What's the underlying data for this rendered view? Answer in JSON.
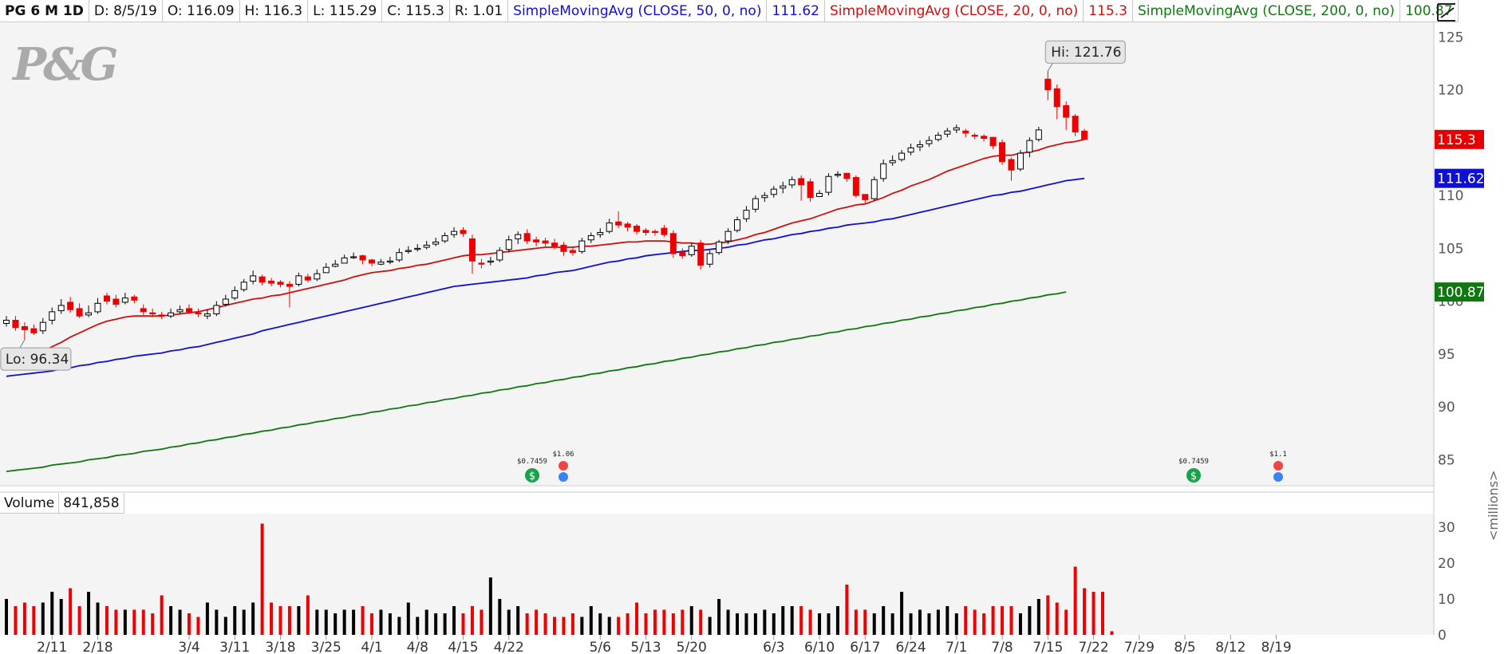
{
  "header": {
    "symbol": "PG 6 M 1D",
    "date": "D: 8/5/19",
    "open": "O: 116.09",
    "high": "H: 116.3",
    "low": "L: 115.29",
    "close": "C: 115.3",
    "range": "R: 1.01",
    "sma50_label": "SimpleMovingAvg (CLOSE, 50, 0, no)",
    "sma50_value": "111.62",
    "sma20_label": "SimpleMovingAvg (CLOSE, 20, 0, no)",
    "sma20_value": "115.3",
    "sma200_label": "SimpleMovingAvg (CLOSE, 200, 0, no)",
    "sma200_value": "100.87"
  },
  "logo": "P&G",
  "volume_header": {
    "label": "Volume",
    "value": "841,858"
  },
  "volume_unit": "<millions>",
  "colors": {
    "up": "#000000",
    "down": "#ee0000",
    "sma50": "#1010d0",
    "sma20": "#cc1111",
    "sma200": "#117711"
  },
  "icons": [
    "drawing-tool-icon",
    "dividend-icon",
    "earnings-icon"
  ],
  "chart_data": {
    "type": "candlestick",
    "price_axis": {
      "ticks": [
        "125",
        "120",
        "115",
        "110",
        "105",
        "100",
        "95",
        "90",
        "85"
      ],
      "ylim": [
        83,
        126
      ]
    },
    "volume_axis": {
      "ticks": [
        "30",
        "20",
        "10",
        "0"
      ],
      "ylim": [
        0,
        32
      ],
      "unit": "<millions>"
    },
    "x_ticks": [
      "2/11",
      "2/18",
      "3/4",
      "3/11",
      "3/18",
      "3/25",
      "4/1",
      "4/8",
      "4/15",
      "4/22",
      "5/6",
      "5/13",
      "5/20",
      "6/3",
      "6/10",
      "6/17",
      "6/24",
      "7/1",
      "7/8",
      "7/15",
      "7/22",
      "7/29",
      "8/5",
      "8/12",
      "8/19"
    ],
    "price_tags": [
      {
        "value": "115.3",
        "color": "#e60000",
        "y": 115.3
      },
      {
        "value": "111.62",
        "color": "#1010d0",
        "y": 111.62
      },
      {
        "value": "100.87",
        "color": "#117711",
        "y": 100.87
      }
    ],
    "callouts": {
      "high": "Hi: 121.76",
      "low": "Lo: 96.34"
    },
    "dividends": [
      {
        "label": "$0.7459",
        "date": "4/18"
      },
      {
        "label": "$0.7459",
        "date": "7/18"
      }
    ],
    "earnings": [
      {
        "label": "$1.06",
        "date": "4/19"
      },
      {
        "label": "$1.1",
        "date": "7/30"
      }
    ],
    "closes": [
      98.2,
      97.5,
      97.3,
      97.0,
      98.0,
      99.0,
      99.6,
      99.2,
      98.6,
      98.9,
      99.8,
      100.0,
      99.7,
      100.3,
      100.1,
      99.0,
      98.8,
      98.6,
      98.9,
      99.2,
      99.0,
      98.8,
      98.8,
      99.6,
      100.2,
      101.0,
      101.8,
      102.4,
      101.8,
      101.7,
      101.6,
      101.4,
      102.4,
      102.0,
      102.6,
      103.2,
      103.5,
      104.1,
      104.2,
      103.9,
      103.6,
      103.7,
      103.8,
      104.6,
      104.8,
      105.0,
      105.3,
      105.6,
      106.2,
      106.6,
      106.4,
      103.8,
      103.5,
      103.8,
      104.8,
      105.8,
      106.3,
      105.7,
      105.6,
      105.5,
      105.2,
      104.7,
      104.6,
      105.7,
      106.2,
      106.5,
      107.4,
      107.2,
      107.0,
      106.6,
      106.5,
      106.5,
      106.3,
      104.5,
      104.3,
      105.2,
      103.4,
      104.5,
      105.6,
      106.6,
      107.7,
      108.6,
      109.7,
      110.0,
      110.6,
      110.9,
      111.5,
      111.0,
      109.8,
      110.2,
      111.8,
      112.0,
      111.6,
      110.0,
      109.6,
      111.5,
      113.0,
      113.3,
      114.0,
      114.5,
      114.8,
      115.2,
      115.7,
      116.1,
      116.4,
      115.9,
      115.6,
      115.4,
      114.7,
      113.2,
      112.4,
      114.0,
      115.2,
      116.2,
      120.0,
      118.4,
      117.4,
      116.0,
      115.3
    ],
    "opens": [
      97.9,
      98.2,
      97.6,
      97.4,
      97.2,
      98.2,
      99.1,
      99.9,
      99.3,
      98.7,
      99.0,
      100.5,
      100.2,
      99.9,
      100.4,
      99.3,
      98.9,
      98.7,
      98.6,
      99.0,
      99.3,
      98.9,
      98.6,
      98.8,
      99.7,
      100.3,
      101.1,
      101.9,
      102.3,
      101.9,
      101.8,
      101.6,
      101.6,
      102.3,
      102.1,
      102.7,
      103.3,
      103.6,
      104.2,
      104.3,
      103.9,
      103.5,
      103.7,
      103.9,
      104.7,
      104.9,
      105.1,
      105.4,
      105.7,
      106.3,
      106.7,
      105.9,
      103.6,
      103.7,
      103.9,
      104.9,
      105.9,
      106.4,
      105.8,
      105.7,
      105.5,
      105.3,
      104.8,
      104.7,
      105.8,
      106.3,
      106.6,
      107.5,
      107.3,
      107.1,
      106.7,
      106.6,
      106.9,
      106.4,
      104.6,
      104.4,
      105.5,
      103.5,
      104.6,
      105.7,
      106.7,
      107.8,
      108.7,
      109.8,
      110.1,
      110.7,
      111.0,
      111.6,
      111.3,
      109.9,
      110.3,
      111.9,
      112.1,
      111.7,
      110.1,
      109.7,
      111.6,
      113.1,
      113.4,
      114.1,
      114.6,
      114.9,
      115.3,
      115.8,
      116.2,
      116.1,
      115.7,
      115.6,
      115.5,
      115.0,
      113.4,
      112.5,
      114.1,
      115.3,
      121.0,
      120.1,
      118.5,
      117.5,
      116.09
    ],
    "highs": [
      98.6,
      98.6,
      98.0,
      97.8,
      98.4,
      99.4,
      100.2,
      100.4,
      99.8,
      99.6,
      100.3,
      100.8,
      100.6,
      100.8,
      100.6,
      99.7,
      99.3,
      99.0,
      99.3,
      99.6,
      99.7,
      99.3,
      99.2,
      100.0,
      100.6,
      101.4,
      102.1,
      102.9,
      102.5,
      102.2,
      102.0,
      101.9,
      102.7,
      102.6,
      103.0,
      103.6,
      103.9,
      104.4,
      104.6,
      104.4,
      104.0,
      104.0,
      104.2,
      105.0,
      105.2,
      105.4,
      105.7,
      106.0,
      106.5,
      107.0,
      107.0,
      106.3,
      104.0,
      104.2,
      105.1,
      106.2,
      106.6,
      106.8,
      106.1,
      106.0,
      105.9,
      105.6,
      105.2,
      106.0,
      106.5,
      106.9,
      107.8,
      108.5,
      107.5,
      107.3,
      106.9,
      106.8,
      107.2,
      106.7,
      105.0,
      105.5,
      105.8,
      104.8,
      105.8,
      106.9,
      108.0,
      109.0,
      110.0,
      110.3,
      110.9,
      111.3,
      111.8,
      111.9,
      111.6,
      110.5,
      112.1,
      112.3,
      112.0,
      111.9,
      110.1,
      111.8,
      113.4,
      113.8,
      114.3,
      114.9,
      115.2,
      115.6,
      116.0,
      116.4,
      116.7,
      116.3,
      115.9,
      115.8,
      115.4,
      115.3,
      113.6,
      114.3,
      115.5,
      116.5,
      121.76,
      120.5,
      118.9,
      117.7,
      116.3
    ],
    "lows": [
      97.6,
      97.2,
      96.34,
      96.8,
      96.9,
      97.8,
      98.8,
      98.9,
      98.4,
      98.5,
      98.8,
      99.7,
      99.4,
      99.7,
      99.8,
      98.7,
      98.5,
      98.3,
      98.4,
      98.8,
      98.8,
      98.5,
      98.3,
      98.6,
      99.5,
      100.1,
      100.9,
      101.6,
      101.5,
      101.4,
      101.3,
      99.4,
      101.4,
      101.8,
      101.9,
      102.9,
      103.2,
      103.8,
      104.0,
      103.5,
      103.3,
      103.4,
      103.5,
      103.7,
      104.5,
      104.7,
      104.9,
      105.2,
      105.5,
      106.0,
      106.1,
      102.6,
      103.1,
      103.4,
      103.7,
      104.6,
      105.4,
      105.4,
      105.2,
      105.2,
      104.9,
      104.3,
      104.3,
      104.5,
      105.5,
      106.0,
      106.4,
      106.9,
      106.6,
      106.3,
      106.2,
      106.2,
      106.1,
      104.1,
      104.0,
      104.2,
      103.0,
      103.2,
      104.4,
      105.4,
      106.5,
      107.5,
      108.4,
      109.4,
      109.8,
      110.2,
      110.7,
      109.5,
      109.4,
      109.9,
      110.0,
      111.7,
      111.3,
      109.8,
      109.2,
      109.5,
      111.3,
      112.8,
      113.2,
      113.8,
      114.2,
      114.6,
      115.1,
      115.5,
      115.9,
      115.5,
      115.3,
      115.1,
      114.4,
      112.9,
      111.4,
      112.3,
      113.6,
      115.1,
      119.0,
      117.2,
      116.2,
      115.6,
      115.29
    ],
    "volumes": [
      10,
      8,
      9,
      8,
      9,
      12,
      10,
      13,
      8,
      12,
      9,
      8,
      7,
      7,
      7,
      7,
      6,
      11,
      8,
      7,
      6,
      5,
      9,
      7,
      5,
      8,
      7,
      9,
      31,
      9,
      8,
      8,
      8,
      11,
      7,
      7,
      6,
      7,
      7,
      8,
      6,
      7,
      6,
      5,
      9,
      5,
      7,
      6,
      6,
      8,
      6,
      8,
      7,
      16,
      10,
      7,
      8,
      6,
      7,
      6,
      5,
      5,
      6,
      5,
      8,
      6,
      5,
      5,
      6,
      9,
      6,
      7,
      7,
      6,
      7,
      8,
      7,
      5,
      10,
      7,
      6,
      6,
      6,
      7,
      6,
      8,
      8,
      8,
      7,
      6,
      6,
      8,
      14,
      7,
      7,
      6,
      8,
      6,
      12,
      6,
      7,
      6,
      7,
      8,
      6,
      8,
      7,
      6,
      8,
      8,
      8,
      6,
      8,
      10,
      11,
      9,
      7,
      19,
      13,
      12,
      12,
      1
    ],
    "sma20": [
      93.7,
      94.0,
      94.4,
      94.8,
      95.2,
      95.7,
      96.1,
      96.6,
      97.0,
      97.4,
      97.8,
      98.1,
      98.3,
      98.5,
      98.6,
      98.6,
      98.6,
      98.6,
      98.7,
      98.8,
      98.9,
      99.0,
      99.2,
      99.4,
      99.6,
      99.8,
      100.0,
      100.2,
      100.3,
      100.5,
      100.6,
      100.8,
      101.0,
      101.2,
      101.4,
      101.6,
      101.8,
      102.0,
      102.3,
      102.5,
      102.7,
      102.8,
      102.9,
      103.1,
      103.2,
      103.4,
      103.5,
      103.7,
      103.9,
      104.1,
      104.3,
      104.4,
      104.4,
      104.5,
      104.6,
      104.7,
      104.8,
      104.9,
      105.0,
      105.1,
      105.1,
      105.1,
      105.1,
      105.2,
      105.2,
      105.3,
      105.4,
      105.5,
      105.6,
      105.6,
      105.7,
      105.7,
      105.7,
      105.6,
      105.5,
      105.5,
      105.4,
      105.4,
      105.5,
      105.6,
      105.8,
      106.0,
      106.3,
      106.5,
      106.8,
      107.1,
      107.4,
      107.6,
      107.8,
      108.1,
      108.4,
      108.7,
      108.9,
      109.1,
      109.2,
      109.5,
      109.8,
      110.2,
      110.5,
      110.9,
      111.2,
      111.5,
      111.9,
      112.3,
      112.6,
      112.9,
      113.2,
      113.5,
      113.7,
      113.8,
      113.8,
      114.0,
      114.1,
      114.3,
      114.6,
      114.8,
      115.0,
      115.1,
      115.3
    ],
    "sma50": [
      92.9,
      93.0,
      93.1,
      93.2,
      93.3,
      93.4,
      93.6,
      93.7,
      93.9,
      94.0,
      94.2,
      94.3,
      94.5,
      94.6,
      94.8,
      94.9,
      95.0,
      95.1,
      95.3,
      95.4,
      95.6,
      95.7,
      95.9,
      96.1,
      96.3,
      96.5,
      96.7,
      96.9,
      97.2,
      97.4,
      97.6,
      97.8,
      98.0,
      98.2,
      98.4,
      98.6,
      98.8,
      99.0,
      99.2,
      99.4,
      99.6,
      99.8,
      100.0,
      100.2,
      100.4,
      100.6,
      100.8,
      101.0,
      101.2,
      101.4,
      101.5,
      101.6,
      101.7,
      101.8,
      101.9,
      102.0,
      102.1,
      102.2,
      102.4,
      102.5,
      102.7,
      102.8,
      102.9,
      103.1,
      103.3,
      103.5,
      103.7,
      103.8,
      104.0,
      104.1,
      104.3,
      104.4,
      104.5,
      104.6,
      104.7,
      104.8,
      104.8,
      104.9,
      105.0,
      105.1,
      105.3,
      105.4,
      105.6,
      105.8,
      105.9,
      106.1,
      106.3,
      106.4,
      106.6,
      106.7,
      106.9,
      107.0,
      107.2,
      107.3,
      107.4,
      107.5,
      107.7,
      107.8,
      108.0,
      108.2,
      108.4,
      108.6,
      108.8,
      109.0,
      109.2,
      109.4,
      109.6,
      109.8,
      110.0,
      110.1,
      110.3,
      110.4,
      110.6,
      110.8,
      111.0,
      111.2,
      111.4,
      111.5,
      111.62
    ],
    "sma200": [
      83.9,
      84.0,
      84.1,
      84.2,
      84.3,
      84.5,
      84.6,
      84.7,
      84.8,
      85.0,
      85.1,
      85.2,
      85.4,
      85.5,
      85.6,
      85.8,
      85.9,
      86.0,
      86.2,
      86.3,
      86.5,
      86.6,
      86.8,
      86.9,
      87.1,
      87.2,
      87.4,
      87.5,
      87.7,
      87.8,
      88.0,
      88.1,
      88.3,
      88.4,
      88.6,
      88.7,
      88.9,
      89.0,
      89.2,
      89.3,
      89.5,
      89.6,
      89.8,
      89.9,
      90.1,
      90.2,
      90.4,
      90.5,
      90.7,
      90.8,
      91.0,
      91.1,
      91.3,
      91.4,
      91.6,
      91.7,
      91.9,
      92.0,
      92.2,
      92.3,
      92.5,
      92.6,
      92.8,
      92.9,
      93.1,
      93.2,
      93.4,
      93.5,
      93.7,
      93.8,
      94.0,
      94.1,
      94.3,
      94.4,
      94.6,
      94.7,
      94.9,
      95.0,
      95.2,
      95.3,
      95.5,
      95.6,
      95.8,
      95.9,
      96.1,
      96.2,
      96.4,
      96.5,
      96.7,
      96.8,
      97.0,
      97.1,
      97.3,
      97.4,
      97.6,
      97.7,
      97.9,
      98.0,
      98.2,
      98.3,
      98.5,
      98.6,
      98.8,
      98.9,
      99.1,
      99.2,
      99.4,
      99.5,
      99.7,
      99.8,
      100.0,
      100.1,
      100.3,
      100.4,
      100.6,
      100.7,
      100.87
    ]
  }
}
